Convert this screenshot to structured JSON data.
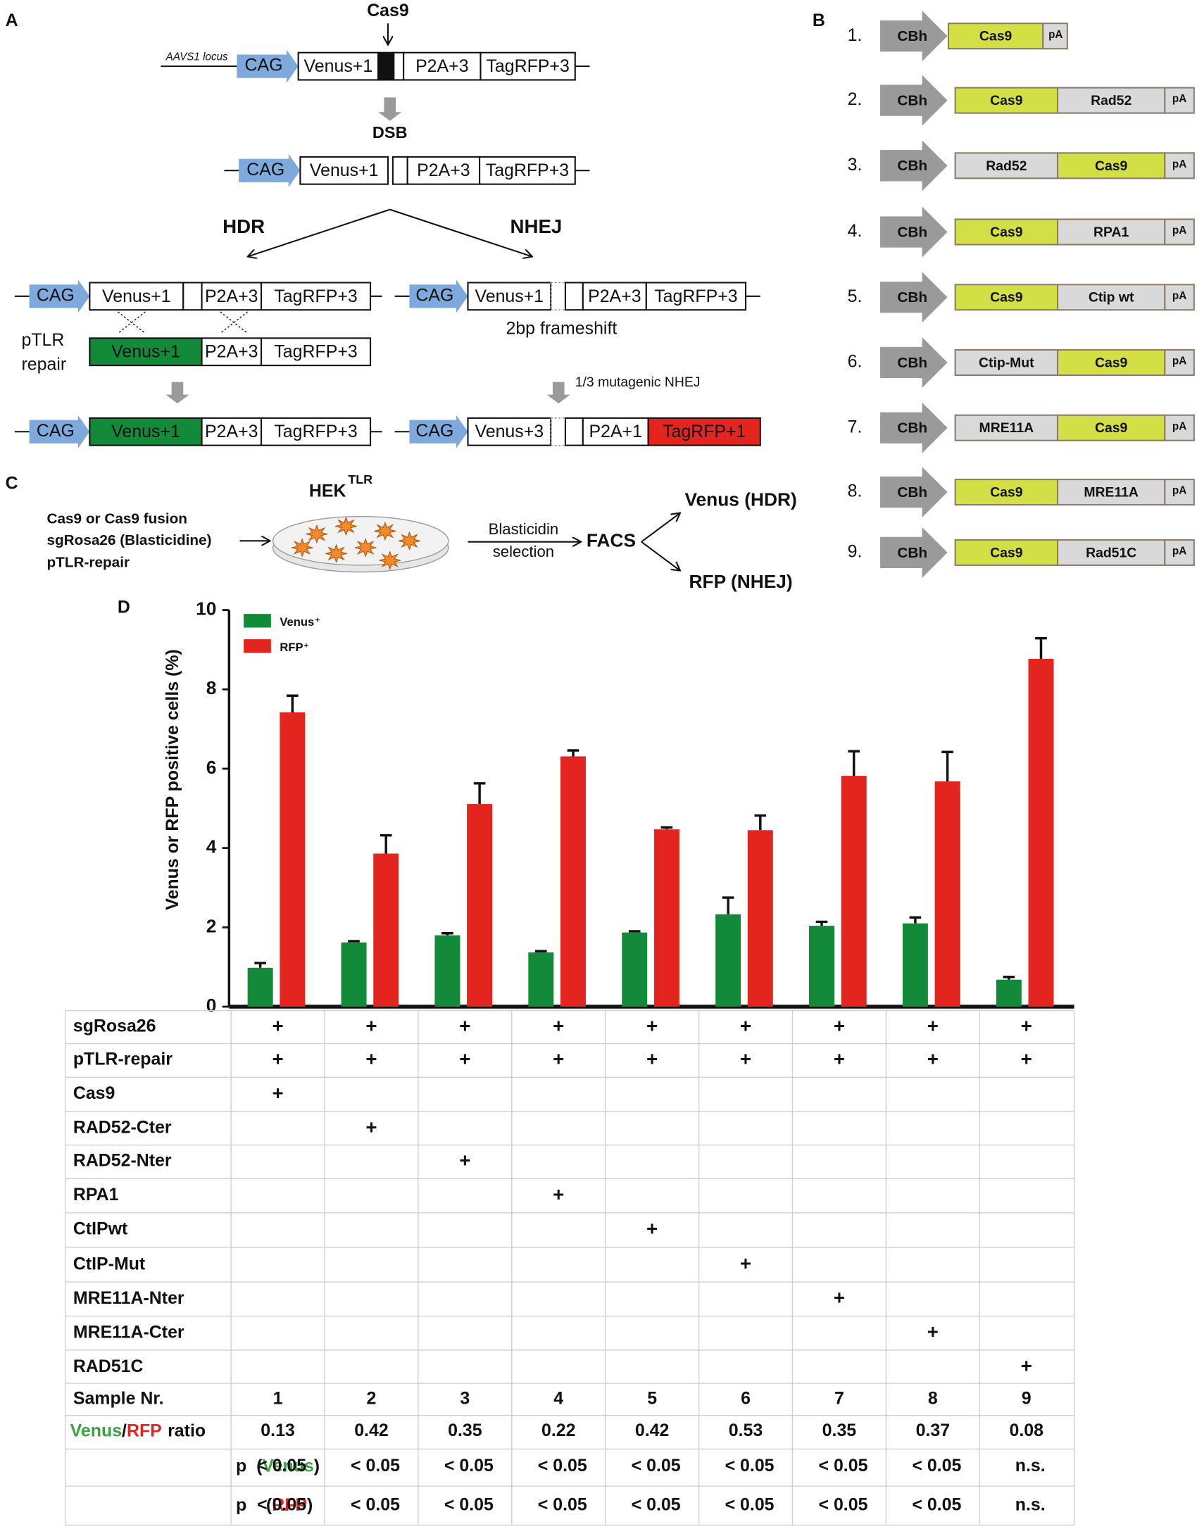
{
  "panel_a": {
    "label": "A",
    "nuclease": "Cas9",
    "locus": "AAVS1 locus",
    "promoter": "CAG",
    "venus1": "Venus+1",
    "p2a3": "P2A+3",
    "tagrfp3": "TagRFP+3",
    "dsb": "DSB",
    "hdr": "HDR",
    "nhej": "NHEJ",
    "repair": [
      "pTLR",
      "repair"
    ],
    "frameshift": "2bp frameshift",
    "mutagenic": "1/3 mutagenic NHEJ",
    "venus3": "Venus+3",
    "p2a1": "P2A+1",
    "tagrfp1": "TagRFP+1"
  },
  "panel_b": {
    "label": "B",
    "promoter": "CBh",
    "polya": "pA",
    "numbers": [
      "1.",
      "2.",
      "3.",
      "4.",
      "5.",
      "6.",
      "7.",
      "8.",
      "9."
    ],
    "constructs": [
      [
        "Cas9"
      ],
      [
        "Cas9",
        "Rad52"
      ],
      [
        "Rad52",
        "Cas9"
      ],
      [
        "Cas9",
        "RPA1"
      ],
      [
        "Cas9",
        "Ctip wt"
      ],
      [
        "Ctip-Mut",
        "Cas9"
      ],
      [
        "MRE11A",
        "Cas9"
      ],
      [
        "Cas9",
        "MRE11A"
      ],
      [
        "Cas9",
        "Rad51C"
      ]
    ]
  },
  "panel_c": {
    "label": "C",
    "inputs": [
      "Cas9 or Cas9 fusion",
      "sgRosa26 (Blasticidine)",
      "pTLR-repair"
    ],
    "cell": "HEK",
    "cell_sup": "TLR",
    "step": [
      "Blasticidin",
      "selection"
    ],
    "facs": "FACS",
    "out_venus": "Venus (HDR)",
    "out_rfp": "RFP (NHEJ)"
  },
  "chart_data": {
    "type": "bar",
    "label": "D",
    "ylabel": "Venus or RFP positive cells (%)",
    "categories": [
      "1",
      "2",
      "3",
      "4",
      "5",
      "6",
      "7",
      "8",
      "9"
    ],
    "series": [
      {
        "name": "Venus⁺",
        "color": "#138a3a",
        "values": [
          0.98,
          1.62,
          1.8,
          1.37,
          1.87,
          2.33,
          2.04,
          2.1,
          0.68
        ],
        "errors": [
          0.12,
          0.03,
          0.05,
          0.03,
          0.03,
          0.42,
          0.1,
          0.15,
          0.07
        ]
      },
      {
        "name": "RFP⁺",
        "color": "#e3241f",
        "values": [
          7.42,
          3.86,
          5.11,
          6.31,
          4.47,
          4.45,
          5.82,
          5.68,
          8.77
        ],
        "errors": [
          0.42,
          0.46,
          0.52,
          0.15,
          0.05,
          0.37,
          0.62,
          0.74,
          0.52
        ]
      }
    ],
    "ylim": [
      0,
      10
    ],
    "yticks": [
      0,
      2,
      4,
      6,
      8,
      10
    ],
    "legend": "top-left"
  },
  "table": {
    "rows": [
      {
        "label": "sgRosa26",
        "cells": [
          "+",
          "+",
          "+",
          "+",
          "+",
          "+",
          "+",
          "+",
          "+"
        ]
      },
      {
        "label": "pTLR-repair",
        "cells": [
          "+",
          "+",
          "+",
          "+",
          "+",
          "+",
          "+",
          "+",
          "+"
        ]
      },
      {
        "label": "Cas9",
        "cells": [
          "+",
          null,
          null,
          null,
          null,
          null,
          null,
          null,
          null
        ]
      },
      {
        "label": "RAD52-Cter",
        "cells": [
          null,
          "+",
          null,
          null,
          null,
          null,
          null,
          null,
          null
        ]
      },
      {
        "label": "RAD52-Nter",
        "cells": [
          null,
          null,
          "+",
          null,
          null,
          null,
          null,
          null,
          null
        ]
      },
      {
        "label": "RPA1",
        "cells": [
          null,
          null,
          null,
          "+",
          null,
          null,
          null,
          null,
          null
        ]
      },
      {
        "label": "CtIPwt",
        "cells": [
          null,
          null,
          null,
          null,
          "+",
          null,
          null,
          null,
          null
        ]
      },
      {
        "label": "CtIP-Mut",
        "cells": [
          null,
          null,
          null,
          null,
          null,
          "+",
          null,
          null,
          null
        ]
      },
      {
        "label": "MRE11A-Nter",
        "cells": [
          null,
          null,
          null,
          null,
          null,
          null,
          "+",
          null,
          null
        ]
      },
      {
        "label": "MRE11A-Cter",
        "cells": [
          null,
          null,
          null,
          null,
          null,
          null,
          null,
          "+",
          null
        ]
      },
      {
        "label": "RAD51C",
        "cells": [
          null,
          null,
          null,
          null,
          null,
          null,
          null,
          null,
          "+"
        ]
      }
    ],
    "sample_label": "Sample Nr.",
    "ratio": {
      "label_parts": [
        "Venus",
        "/",
        "RFP",
        "ratio"
      ],
      "values": [
        0.13,
        0.42,
        0.35,
        0.22,
        0.42,
        0.53,
        0.35,
        0.37,
        0.08
      ]
    },
    "p_venus": {
      "label_parts": [
        "p",
        "(",
        "Venus",
        ")"
      ],
      "values": [
        "< 0.05",
        "< 0.05",
        "< 0.05",
        "< 0.05",
        "< 0.05",
        "< 0.05",
        "< 0.05",
        "< 0.05",
        "n.s."
      ]
    },
    "p_rfp": {
      "label_parts": [
        "p",
        "(",
        "RFP",
        ")"
      ],
      "values": [
        "< 0.05",
        "< 0.05",
        "< 0.05",
        "< 0.05",
        "< 0.05",
        "< 0.05",
        "< 0.05",
        "< 0.05",
        "n.s."
      ]
    }
  }
}
